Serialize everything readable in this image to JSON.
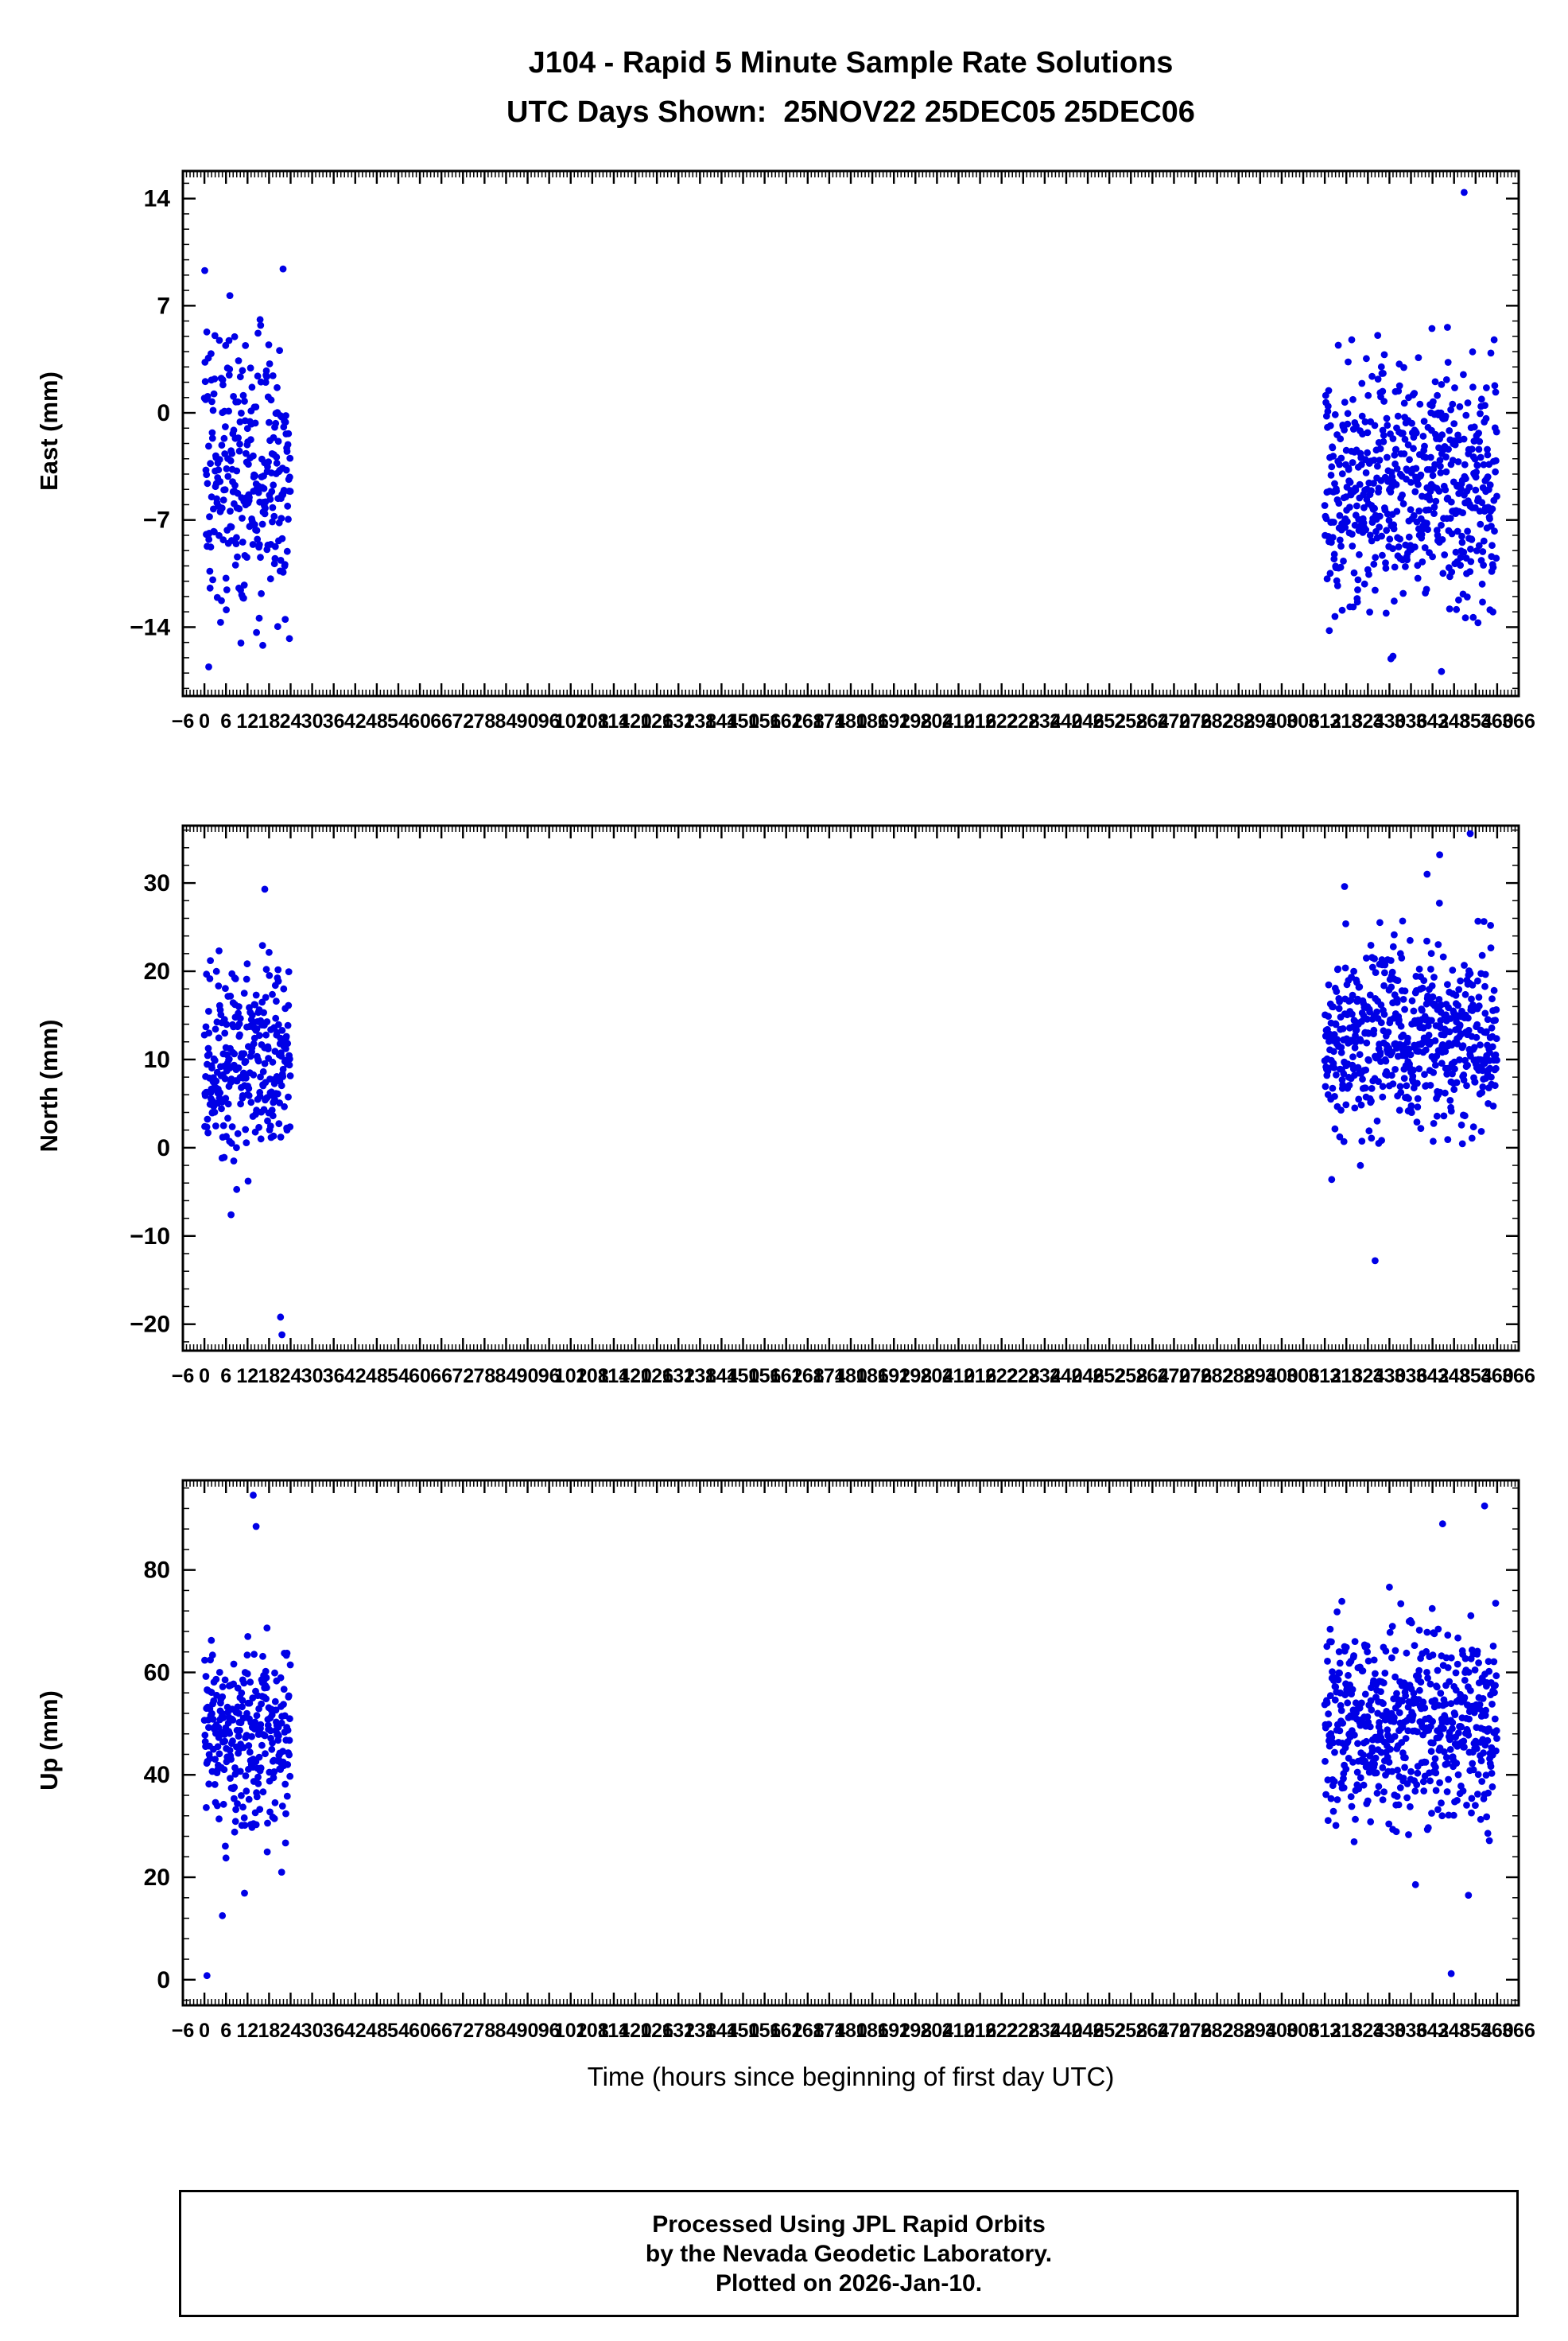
{
  "title": {
    "line1": "J104 - Rapid 5 Minute Sample Rate Solutions",
    "line2": "UTC Days Shown:  25NOV22 25DEC05 25DEC06"
  },
  "xlabel": "Time (hours since beginning of first day UTC)",
  "footer": {
    "line1": "Processed Using JPL Rapid Orbits",
    "line2": "by the Nevada Geodetic Laboratory.",
    "line3": "Plotted on 2026-Jan-10."
  },
  "style": {
    "point_color": "#0000e6",
    "axis_color": "#000000",
    "point_radius": 4.4,
    "grid": "off",
    "legend": "none"
  },
  "x_axis": {
    "min": -6,
    "max": 366,
    "major_step": 6,
    "minor_step": 1
  },
  "chart_data": [
    {
      "type": "scatter",
      "ylabel": "East (mm)",
      "ylim": [
        -18.5,
        15.8
      ],
      "yticks": [
        -14,
        -7,
        0,
        7,
        14
      ],
      "y_minor_step": 1,
      "seed": 11,
      "clusters": [
        {
          "x_start": 0,
          "x_end": 24,
          "count": 288,
          "y_mean": -4.3,
          "y_std": 4.4,
          "y_clip": [
            -16.5,
            9.6
          ]
        },
        {
          "x_start": 312,
          "x_end": 360,
          "count": 576,
          "y_mean": -4.8,
          "y_std": 4.0,
          "y_clip": [
            -16.8,
            8.4
          ]
        }
      ],
      "outliers": [
        [
          21.9,
          9.4
        ],
        [
          350.8,
          14.4
        ],
        [
          331.0,
          -15.9
        ],
        [
          344.5,
          -16.9
        ],
        [
          1.2,
          -16.6
        ]
      ]
    },
    {
      "type": "scatter",
      "ylabel": "North (mm)",
      "ylim": [
        -23,
        36.5
      ],
      "yticks": [
        -20,
        -10,
        0,
        10,
        20,
        30
      ],
      "y_minor_step": 2,
      "seed": 22,
      "clusters": [
        {
          "x_start": 0,
          "x_end": 24,
          "count": 288,
          "y_mean": 9.5,
          "y_std": 5.3,
          "y_clip": [
            -11.5,
            26.5
          ]
        },
        {
          "x_start": 312,
          "x_end": 360,
          "count": 576,
          "y_mean": 12.0,
          "y_std": 5.2,
          "y_clip": [
            -8.5,
            31.0
          ]
        }
      ],
      "outliers": [
        [
          16.8,
          29.3
        ],
        [
          21.2,
          -19.2
        ],
        [
          21.6,
          -21.2
        ],
        [
          317.5,
          29.6
        ],
        [
          344.0,
          33.2
        ],
        [
          352.5,
          35.6
        ],
        [
          326.0,
          -12.8
        ],
        [
          340.5,
          31.0
        ]
      ]
    },
    {
      "type": "scatter",
      "ylabel": "Up (mm)",
      "ylim": [
        -5,
        97.5
      ],
      "yticks": [
        0,
        20,
        40,
        60,
        80
      ],
      "y_minor_step": 4,
      "seed": 33,
      "clusters": [
        {
          "x_start": 0,
          "x_end": 24,
          "count": 288,
          "y_mean": 47.5,
          "y_std": 9.0,
          "y_clip": [
            13,
            77
          ]
        },
        {
          "x_start": 312,
          "x_end": 360,
          "count": 576,
          "y_mean": 50.0,
          "y_std": 10.0,
          "y_clip": [
            16,
            86
          ]
        }
      ],
      "outliers": [
        [
          13.6,
          94.6
        ],
        [
          14.4,
          88.5
        ],
        [
          0.7,
          0.8
        ],
        [
          347.2,
          1.2
        ],
        [
          352.0,
          16.5
        ],
        [
          356.5,
          92.5
        ],
        [
          344.8,
          89.0
        ],
        [
          21.5,
          21.0
        ],
        [
          5.0,
          12.5
        ]
      ]
    }
  ]
}
